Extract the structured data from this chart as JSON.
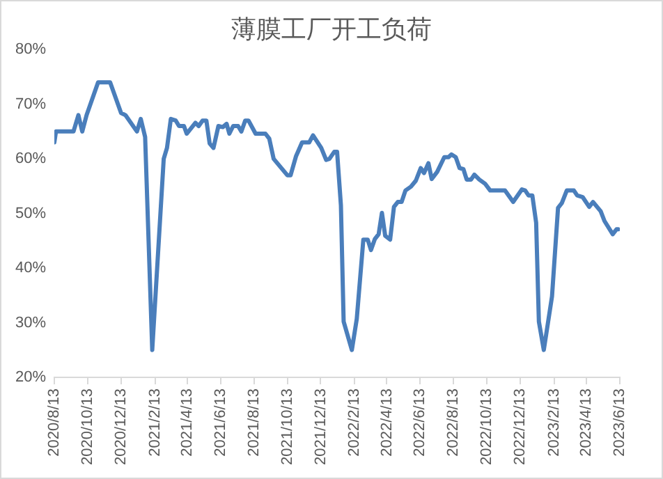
{
  "chart_data": {
    "type": "line",
    "title": "薄膜工厂开工负荷",
    "series": [
      {
        "color": "#4a7ebb",
        "x": [
          "2020-08-13",
          "2020-08-16",
          "2020-09-17",
          "2020-09-26",
          "2020-10-03",
          "2020-10-11",
          "2020-11-01",
          "2020-11-23",
          "2020-12-13",
          "2020-12-21",
          "2021-01-11",
          "2021-01-18",
          "2021-01-26",
          "2021-02-08",
          "2021-03-01",
          "2021-03-07",
          "2021-03-14",
          "2021-03-23",
          "2021-03-29",
          "2021-04-07",
          "2021-04-12",
          "2021-04-28",
          "2021-05-04",
          "2021-05-11",
          "2021-05-18",
          "2021-05-24",
          "2021-05-31",
          "2021-06-09",
          "2021-06-17",
          "2021-06-24",
          "2021-06-29",
          "2021-07-06",
          "2021-07-15",
          "2021-07-21",
          "2021-07-28",
          "2021-08-03",
          "2021-08-16",
          "2021-09-03",
          "2021-09-10",
          "2021-09-18",
          "2021-10-13",
          "2021-10-19",
          "2021-10-29",
          "2021-11-09",
          "2021-11-22",
          "2021-11-29",
          "2021-12-14",
          "2021-12-23",
          "2021-12-29",
          "2022-01-07",
          "2022-01-12",
          "2022-01-19",
          "2022-01-24",
          "2022-02-08",
          "2022-02-17",
          "2022-03-01",
          "2022-03-09",
          "2022-03-15",
          "2022-03-22",
          "2022-03-29",
          "2022-04-04",
          "2022-04-10",
          "2022-04-19",
          "2022-04-26",
          "2022-05-03",
          "2022-05-10",
          "2022-05-17",
          "2022-05-27",
          "2022-06-05",
          "2022-06-14",
          "2022-06-20",
          "2022-06-28",
          "2022-07-04",
          "2022-07-14",
          "2022-07-27",
          "2022-08-04",
          "2022-08-09",
          "2022-08-17",
          "2022-08-24",
          "2022-08-31",
          "2022-09-06",
          "2022-09-14",
          "2022-09-20",
          "2022-09-29",
          "2022-10-10",
          "2022-10-19",
          "2022-11-15",
          "2022-11-30",
          "2022-12-16",
          "2022-12-22",
          "2022-12-28",
          "2023-01-04",
          "2023-01-11",
          "2023-01-16",
          "2023-01-25",
          "2023-02-09",
          "2023-02-20",
          "2023-02-27",
          "2023-03-08",
          "2023-03-21",
          "2023-03-27",
          "2023-04-06",
          "2023-04-18",
          "2023-04-25",
          "2023-05-09",
          "2023-05-16",
          "2023-05-31",
          "2023-06-07",
          "2023-06-10"
        ],
        "values": [
          63,
          65,
          65,
          68,
          65,
          68,
          74,
          74,
          68.4,
          68,
          65,
          67.3,
          64,
          25,
          60,
          62,
          67.3,
          67,
          66,
          66,
          64.6,
          66.6,
          66,
          67,
          67,
          62.8,
          62,
          66,
          65.8,
          66.4,
          64.6,
          66,
          66,
          65,
          67,
          67,
          64.6,
          64.6,
          63.7,
          60,
          57,
          57,
          60.5,
          63,
          63,
          64.3,
          62,
          59.8,
          60,
          61.3,
          61.3,
          51.5,
          30.2,
          25,
          30.7,
          45.2,
          45.2,
          43.3,
          45.3,
          46.2,
          50.1,
          45.9,
          45.2,
          51.2,
          52.1,
          52.1,
          54.2,
          54.9,
          56,
          58.3,
          57.4,
          59.2,
          56.3,
          57.6,
          60.3,
          60.3,
          60.8,
          60.3,
          58.3,
          58.1,
          56.2,
          56.2,
          57.1,
          56.2,
          55.4,
          54.2,
          54.2,
          52.1,
          54.4,
          54.2,
          53.3,
          53.3,
          48.3,
          30.2,
          25,
          34.8,
          51,
          51.9,
          54.2,
          54.2,
          53.3,
          53,
          51.2,
          52.1,
          50.4,
          48.6,
          46.2,
          47.1,
          47.1
        ]
      }
    ],
    "xlim": [
      "2020-08-13",
      "2023-06-13"
    ],
    "xticks": [
      {
        "value": "2020-08-13",
        "label": "2020/8/13"
      },
      {
        "value": "2020-10-13",
        "label": "2020/10/13"
      },
      {
        "value": "2020-12-13",
        "label": "2020/12/13"
      },
      {
        "value": "2021-02-13",
        "label": "2021/2/13"
      },
      {
        "value": "2021-04-13",
        "label": "2021/4/13"
      },
      {
        "value": "2021-06-13",
        "label": "2021/6/13"
      },
      {
        "value": "2021-08-13",
        "label": "2021/8/13"
      },
      {
        "value": "2021-10-13",
        "label": "2021/10/13"
      },
      {
        "value": "2021-12-13",
        "label": "2021/12/13"
      },
      {
        "value": "2022-02-13",
        "label": "2022/2/13"
      },
      {
        "value": "2022-04-13",
        "label": "2022/4/13"
      },
      {
        "value": "2022-06-13",
        "label": "2022/6/13"
      },
      {
        "value": "2022-08-13",
        "label": "2022/8/13"
      },
      {
        "value": "2022-10-13",
        "label": "2022/10/13"
      },
      {
        "value": "2022-12-13",
        "label": "2022/12/13"
      },
      {
        "value": "2023-02-13",
        "label": "2023/2/13"
      },
      {
        "value": "2023-04-13",
        "label": "2023/4/13"
      },
      {
        "value": "2023-06-13",
        "label": "2023/6/13"
      }
    ],
    "ylim": [
      20,
      80
    ],
    "yticks": [
      {
        "value": 20,
        "label": "20%"
      },
      {
        "value": 30,
        "label": "30%"
      },
      {
        "value": 40,
        "label": "40%"
      },
      {
        "value": 50,
        "label": "50%"
      },
      {
        "value": 60,
        "label": "60%"
      },
      {
        "value": 70,
        "label": "70%"
      },
      {
        "value": 80,
        "label": "80%"
      }
    ],
    "grid": false,
    "legend": false,
    "marker": "none",
    "line_style": "solid"
  }
}
